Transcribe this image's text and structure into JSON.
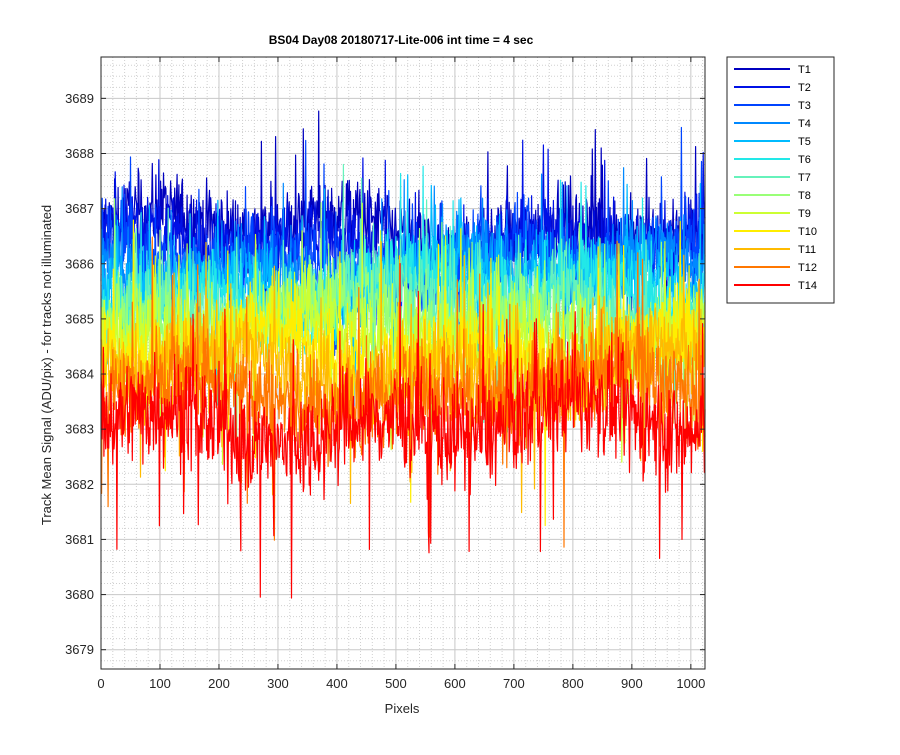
{
  "chart_data": {
    "type": "line",
    "title": "BS04 Day08 20180717-Lite-006 int time = 4 sec",
    "xlabel": "Pixels",
    "ylabel": "Track Mean Signal (ADU/pix) - for tracks not illuminated",
    "xlim": [
      0,
      1024
    ],
    "ylim": [
      3678.65,
      3689.75
    ],
    "x_ticks": [
      0,
      100,
      200,
      300,
      400,
      500,
      600,
      700,
      800,
      900,
      1000
    ],
    "y_ticks": [
      3679,
      3680,
      3681,
      3682,
      3683,
      3684,
      3685,
      3686,
      3687,
      3688,
      3689
    ],
    "minor_grid": true,
    "grid": true,
    "legend_location": "outside-right",
    "series": [
      {
        "name": "T1",
        "color": "#0000bf",
        "mean": 3686.6,
        "spread": 0.65
      },
      {
        "name": "T2",
        "color": "#0011e6",
        "mean": 3686.35,
        "spread": 0.65
      },
      {
        "name": "T3",
        "color": "#0044ff",
        "mean": 3686.1,
        "spread": 0.65
      },
      {
        "name": "T4",
        "color": "#0088ff",
        "mean": 3685.9,
        "spread": 0.65
      },
      {
        "name": "T5",
        "color": "#00bbff",
        "mean": 3685.7,
        "spread": 0.65
      },
      {
        "name": "T6",
        "color": "#22e8e8",
        "mean": 3685.5,
        "spread": 0.7
      },
      {
        "name": "T7",
        "color": "#66f2bb",
        "mean": 3685.25,
        "spread": 0.7
      },
      {
        "name": "T8",
        "color": "#99ff77",
        "mean": 3685.0,
        "spread": 0.7
      },
      {
        "name": "T9",
        "color": "#ccff33",
        "mean": 3684.7,
        "spread": 0.75
      },
      {
        "name": "T10",
        "color": "#ffee00",
        "mean": 3684.4,
        "spread": 0.8
      },
      {
        "name": "T11",
        "color": "#ffbb00",
        "mean": 3684.1,
        "spread": 0.8
      },
      {
        "name": "T12",
        "color": "#ff7700",
        "mean": 3683.7,
        "spread": 0.85
      },
      {
        "name": "T14",
        "color": "#ff0000",
        "mean": 3683.1,
        "spread": 0.9
      }
    ]
  }
}
